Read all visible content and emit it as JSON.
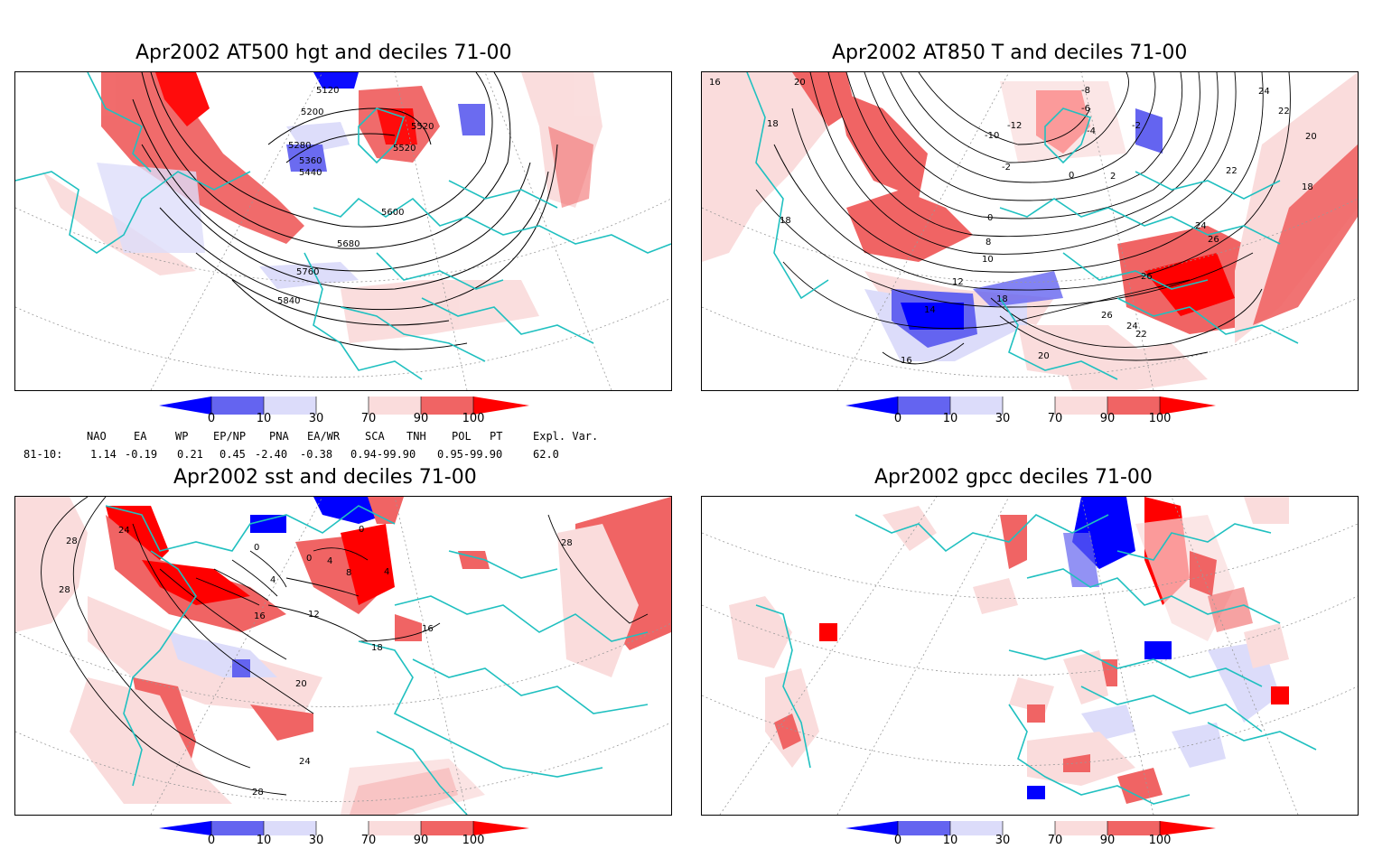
{
  "panels": [
    {
      "id": "p1",
      "title": "Apr2002 AT500 hgt and deciles 71-00",
      "contour_labels": [
        "5120",
        "5200",
        "5280",
        "5360",
        "5440",
        "5520",
        "5520",
        "5600",
        "5680",
        "5760",
        "5840"
      ]
    },
    {
      "id": "p2",
      "title": "Apr2002 AT850 T and deciles 71-00",
      "contour_labels": [
        "16",
        "20",
        "18",
        "18",
        "-12",
        "-10",
        "-8",
        "-6",
        "-4",
        "-2",
        "-2",
        "0",
        "2",
        "24",
        "22",
        "20",
        "22",
        "18",
        "0",
        "8",
        "10",
        "12",
        "18",
        "14",
        "16",
        "24",
        "26",
        "26",
        "26",
        "24",
        "22",
        "20"
      ]
    },
    {
      "id": "p3",
      "title": "Apr2002 sst and deciles 71-00",
      "contour_labels": [
        "28",
        "28",
        "24",
        "0",
        "0",
        "4",
        "8",
        "4",
        "4",
        "12",
        "16",
        "16",
        "18",
        "20",
        "24",
        "28",
        "28",
        "0"
      ]
    },
    {
      "id": "p4",
      "title": "Apr2002 gpcc deciles 71-00",
      "contour_labels": []
    }
  ],
  "colorbar": {
    "ticks": [
      "0",
      "10",
      "30",
      "70",
      "90",
      "100"
    ],
    "colors": {
      "darkblue": "#0000ff",
      "midblue": "#6464f0",
      "lightblue": "#dcdcfa",
      "white": "#ffffff",
      "lightred": "#fadcdc",
      "midred": "#f06464",
      "darkred": "#ff0000"
    }
  },
  "indices": {
    "headers": [
      "NAO",
      "EA",
      "WP",
      "EP/NP",
      "PNA",
      "EA/WR",
      "SCA",
      "TNH",
      "POL",
      "PT",
      "Expl. Var."
    ],
    "row_label": "81-10:",
    "values": [
      "1.14",
      "-0.19",
      "0.21",
      "0.45",
      "-2.40",
      "-0.38",
      "0.94-99.90",
      "",
      "0.95-99.90",
      "",
      "62.0"
    ]
  },
  "colors": {
    "coast": "#20c0c0",
    "contour": "#000000"
  }
}
